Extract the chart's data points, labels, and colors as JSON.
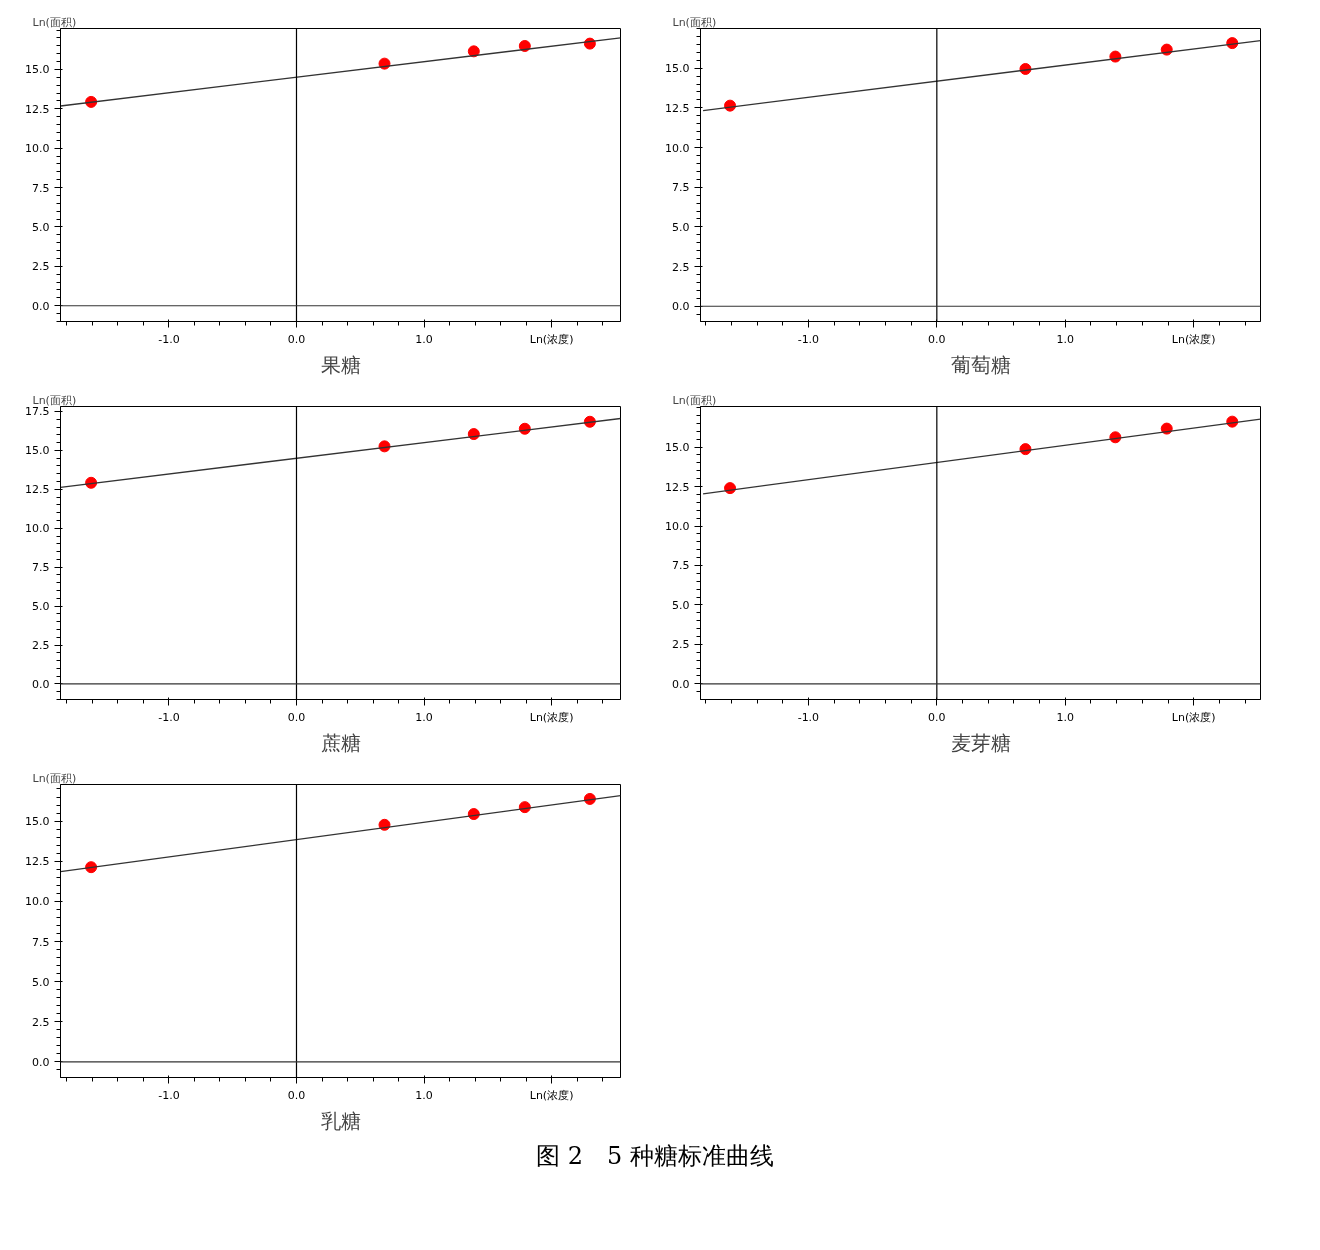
{
  "chart_data": [
    {
      "type": "scatter",
      "title": "果糖",
      "ylabel": "Ln(面积)",
      "xlim": [
        -1.85,
        2.54
      ],
      "ylim": [
        -1.0,
        17.6
      ],
      "xticks": [
        {
          "value": -1.0,
          "label": "-1.0"
        },
        {
          "value": 0.0,
          "label": "0.0"
        },
        {
          "value": 1.0,
          "label": "1.0"
        },
        {
          "value": 2.0,
          "label": "Ln(浓度)"
        }
      ],
      "yticks": [
        {
          "value": 0,
          "label": "0.0"
        },
        {
          "value": 2.5,
          "label": "2.5"
        },
        {
          "value": 5,
          "label": "5.0"
        },
        {
          "value": 7.5,
          "label": "7.5"
        },
        {
          "value": 10,
          "label": "10.0"
        },
        {
          "value": 12.5,
          "label": "12.5"
        },
        {
          "value": 15,
          "label": "15.0"
        }
      ],
      "grid": false,
      "ref_lines": [
        {
          "axis": "x",
          "value": 0,
          "color": "#000000"
        },
        {
          "axis": "y",
          "value": 0,
          "color": "#333333"
        }
      ],
      "series": [
        {
          "marker": "circle",
          "color": "#ff0000",
          "x": [
            -1.61,
            0.69,
            1.39,
            1.79,
            2.3
          ],
          "values": [
            12.94,
            15.37,
            16.15,
            16.49,
            16.64
          ]
        },
        {
          "type": "line",
          "color": "#333333",
          "x": [
            -1.85,
            2.54
          ],
          "values": [
            12.68,
            17.01
          ]
        }
      ]
    },
    {
      "type": "scatter",
      "title": "蔗糖",
      "ylabel": "Ln(面积)",
      "xlim": [
        -1.85,
        2.54
      ],
      "ylim": [
        -1.0,
        17.82
      ],
      "xticks": [
        {
          "value": -1.0,
          "label": "-1.0"
        },
        {
          "value": 0.0,
          "label": "0.0"
        },
        {
          "value": 1.0,
          "label": "1.0"
        },
        {
          "value": 2.0,
          "label": "Ln(浓度)"
        }
      ],
      "yticks": [
        {
          "value": 0,
          "label": "0.0"
        },
        {
          "value": 2.5,
          "label": "2.5"
        },
        {
          "value": 5,
          "label": "5.0"
        },
        {
          "value": 7.5,
          "label": "7.5"
        },
        {
          "value": 10,
          "label": "10.0"
        },
        {
          "value": 12.5,
          "label": "12.5"
        },
        {
          "value": 15,
          "label": "15.0"
        },
        {
          "value": 17.5,
          "label": "17.5"
        }
      ],
      "grid": false,
      "ref_lines": [
        {
          "axis": "x",
          "value": 0,
          "color": "#000000"
        },
        {
          "axis": "y",
          "value": 0,
          "color": "#333333"
        }
      ],
      "series": [
        {
          "marker": "circle",
          "color": "#ff0000",
          "x": [
            -1.61,
            0.69,
            1.39,
            1.79,
            2.3
          ],
          "values": [
            12.92,
            15.26,
            16.05,
            16.39,
            16.84
          ]
        },
        {
          "type": "line",
          "color": "#333333",
          "x": [
            -1.85,
            2.54
          ],
          "values": [
            12.63,
            17.05
          ]
        }
      ]
    },
    {
      "type": "scatter",
      "title": "乳糖",
      "ylabel": "Ln(面积)",
      "xlim": [
        -1.85,
        2.54
      ],
      "ylim": [
        -0.97,
        17.28
      ],
      "xticks": [
        {
          "value": -1.0,
          "label": "-1.0"
        },
        {
          "value": 0.0,
          "label": "0.0"
        },
        {
          "value": 1.0,
          "label": "1.0"
        },
        {
          "value": 2.0,
          "label": "Ln(浓度)"
        }
      ],
      "yticks": [
        {
          "value": 0,
          "label": "0.0"
        },
        {
          "value": 2.5,
          "label": "2.5"
        },
        {
          "value": 5,
          "label": "5.0"
        },
        {
          "value": 7.5,
          "label": "7.5"
        },
        {
          "value": 10,
          "label": "10.0"
        },
        {
          "value": 12.5,
          "label": "12.5"
        },
        {
          "value": 15,
          "label": "15.0"
        }
      ],
      "grid": false,
      "ref_lines": [
        {
          "axis": "x",
          "value": 0,
          "color": "#000000"
        },
        {
          "axis": "y",
          "value": 0,
          "color": "#333333"
        }
      ],
      "annotations": [
        "图 2　5 种糖标准曲线"
      ],
      "series": [
        {
          "marker": "circle",
          "color": "#ff0000",
          "x": [
            -1.61,
            0.69,
            1.39,
            1.79,
            2.3
          ],
          "values": [
            12.13,
            14.77,
            15.44,
            15.87,
            16.38
          ]
        },
        {
          "type": "line",
          "color": "#333333",
          "x": [
            -1.85,
            2.54
          ],
          "values": [
            11.85,
            16.59
          ]
        }
      ]
    },
    {
      "type": "scatter",
      "title": "葡萄糖",
      "ylabel": "Ln(面积)",
      "xlim": [
        -1.84,
        2.52
      ],
      "ylim": [
        -0.96,
        17.5
      ],
      "xticks": [
        {
          "value": -1.0,
          "label": "-1.0"
        },
        {
          "value": 0.0,
          "label": "0.0"
        },
        {
          "value": 1.0,
          "label": "1.0"
        },
        {
          "value": 2.0,
          "label": "Ln(浓度)"
        }
      ],
      "yticks": [
        {
          "value": 0,
          "label": "0.0"
        },
        {
          "value": 2.5,
          "label": "2.5"
        },
        {
          "value": 5,
          "label": "5.0"
        },
        {
          "value": 7.5,
          "label": "7.5"
        },
        {
          "value": 10,
          "label": "10.0"
        },
        {
          "value": 12.5,
          "label": "12.5"
        },
        {
          "value": 15,
          "label": "15.0"
        }
      ],
      "grid": false,
      "ref_lines": [
        {
          "axis": "x",
          "value": 0,
          "color": "#000000"
        },
        {
          "axis": "y",
          "value": 0,
          "color": "#333333"
        }
      ],
      "series": [
        {
          "marker": "circle",
          "color": "#ff0000",
          "x": [
            -1.61,
            0.69,
            1.39,
            1.79,
            2.3
          ],
          "values": [
            12.64,
            14.95,
            15.73,
            16.17,
            16.58
          ]
        },
        {
          "type": "line",
          "color": "#333333",
          "x": [
            -1.82,
            2.52
          ],
          "values": [
            12.33,
            16.74
          ]
        }
      ]
    },
    {
      "type": "scatter",
      "title": "麦芽糖",
      "ylabel": "Ln(面积)",
      "xlim": [
        -1.84,
        2.52
      ],
      "ylim": [
        -0.99,
        17.57
      ],
      "xticks": [
        {
          "value": -1.0,
          "label": "-1.0"
        },
        {
          "value": 0.0,
          "label": "0.0"
        },
        {
          "value": 1.0,
          "label": "1.0"
        },
        {
          "value": 2.0,
          "label": "Ln(浓度)"
        }
      ],
      "yticks": [
        {
          "value": 0,
          "label": "0.0"
        },
        {
          "value": 2.5,
          "label": "2.5"
        },
        {
          "value": 5,
          "label": "5.0"
        },
        {
          "value": 7.5,
          "label": "7.5"
        },
        {
          "value": 10,
          "label": "10.0"
        },
        {
          "value": 12.5,
          "label": "12.5"
        },
        {
          "value": 15,
          "label": "15.0"
        }
      ],
      "grid": false,
      "ref_lines": [
        {
          "axis": "x",
          "value": 0,
          "color": "#000000"
        },
        {
          "axis": "y",
          "value": 0,
          "color": "#333333"
        }
      ],
      "series": [
        {
          "marker": "circle",
          "color": "#ff0000",
          "x": [
            -1.61,
            0.69,
            1.39,
            1.79,
            2.3
          ],
          "values": [
            12.4,
            14.87,
            15.62,
            16.17,
            16.61
          ]
        },
        {
          "type": "line",
          "color": "#333333",
          "x": [
            -1.82,
            2.52
          ],
          "values": [
            12.04,
            16.77
          ]
        }
      ]
    }
  ]
}
